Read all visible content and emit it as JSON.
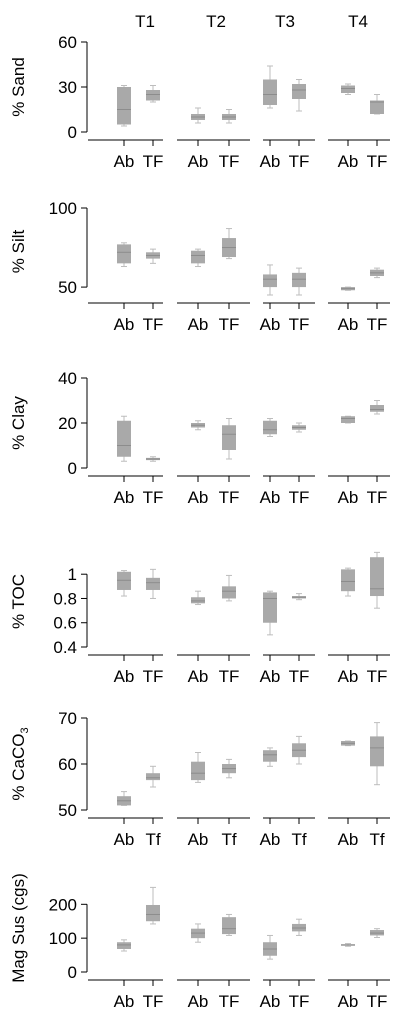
{
  "colors": {
    "box": "#a9a9a9",
    "median": "#8c8c8c",
    "whisker": "#bdbdbd",
    "axis": "#000000"
  },
  "chart_data": {
    "type": "boxplot",
    "columns": [
      "T1",
      "T2",
      "T3",
      "T4"
    ],
    "panels": [
      {
        "ylabel": "% Sand",
        "ylim": [
          0,
          60
        ],
        "yticks": [
          0,
          30,
          60
        ],
        "categories": [
          "Ab",
          "TF"
        ],
        "boxes": [
          {
            "column": "T1",
            "group": "Ab",
            "min": 4,
            "q1": 5,
            "median": 15,
            "q3": 30,
            "max": 31
          },
          {
            "column": "T1",
            "group": "TF",
            "min": 20,
            "q1": 21,
            "median": 25,
            "q3": 28,
            "max": 31
          },
          {
            "column": "T2",
            "group": "Ab",
            "min": 6,
            "q1": 8,
            "median": 10,
            "q3": 12,
            "max": 16
          },
          {
            "column": "T2",
            "group": "TF",
            "min": 6,
            "q1": 8,
            "median": 10,
            "q3": 12,
            "max": 15
          },
          {
            "column": "T3",
            "group": "Ab",
            "min": 16,
            "q1": 18,
            "median": 25,
            "q3": 35,
            "max": 44
          },
          {
            "column": "T3",
            "group": "TF",
            "min": 14,
            "q1": 22,
            "median": 28,
            "q3": 32,
            "max": 35
          },
          {
            "column": "T4",
            "group": "Ab",
            "min": 25,
            "q1": 26,
            "median": 29,
            "q3": 31,
            "max": 32
          },
          {
            "column": "T4",
            "group": "TF",
            "min": 12,
            "q1": 12,
            "median": 20,
            "q3": 21,
            "max": 25
          }
        ]
      },
      {
        "ylabel": "% Silt",
        "ylim": [
          45,
          100
        ],
        "yticks": [
          50,
          100
        ],
        "categories": [
          "Ab",
          "TF"
        ],
        "boxes": [
          {
            "column": "T1",
            "group": "Ab",
            "min": 63,
            "q1": 65,
            "median": 72,
            "q3": 77,
            "max": 78
          },
          {
            "column": "T1",
            "group": "TF",
            "min": 65,
            "q1": 68,
            "median": 70,
            "q3": 72,
            "max": 74
          },
          {
            "column": "T2",
            "group": "Ab",
            "min": 63,
            "q1": 65,
            "median": 70,
            "q3": 73,
            "max": 74
          },
          {
            "column": "T2",
            "group": "TF",
            "min": 68,
            "q1": 69,
            "median": 75,
            "q3": 81,
            "max": 87
          },
          {
            "column": "T3",
            "group": "Ab",
            "min": 45,
            "q1": 50,
            "median": 55,
            "q3": 58,
            "max": 64
          },
          {
            "column": "T3",
            "group": "TF",
            "min": 45,
            "q1": 50,
            "median": 55,
            "q3": 59,
            "max": 62
          },
          {
            "column": "T4",
            "group": "Ab",
            "min": 48,
            "q1": 48,
            "median": 49,
            "q3": 50,
            "max": 50
          },
          {
            "column": "T4",
            "group": "TF",
            "min": 56,
            "q1": 57,
            "median": 59,
            "q3": 61,
            "max": 62
          }
        ]
      },
      {
        "ylabel": "% Clay",
        "ylim": [
          0,
          40
        ],
        "yticks": [
          0,
          20,
          40
        ],
        "categories": [
          "Ab",
          "TF"
        ],
        "boxes": [
          {
            "column": "T1",
            "group": "Ab",
            "min": 3,
            "q1": 5,
            "median": 10,
            "q3": 21,
            "max": 23
          },
          {
            "column": "T1",
            "group": "TF",
            "min": 3,
            "q1": 3.5,
            "median": 4,
            "q3": 4.5,
            "max": 5
          },
          {
            "column": "T2",
            "group": "Ab",
            "min": 17,
            "q1": 18,
            "median": 19,
            "q3": 20,
            "max": 21
          },
          {
            "column": "T2",
            "group": "TF",
            "min": 4,
            "q1": 8,
            "median": 15,
            "q3": 19,
            "max": 22
          },
          {
            "column": "T3",
            "group": "Ab",
            "min": 14,
            "q1": 15,
            "median": 17,
            "q3": 21,
            "max": 22
          },
          {
            "column": "T3",
            "group": "TF",
            "min": 16,
            "q1": 17,
            "median": 18,
            "q3": 19,
            "max": 20
          },
          {
            "column": "T4",
            "group": "Ab",
            "min": 20,
            "q1": 20,
            "median": 22,
            "q3": 23,
            "max": 23
          },
          {
            "column": "T4",
            "group": "TF",
            "min": 24,
            "q1": 25,
            "median": 26,
            "q3": 28,
            "max": 30
          }
        ]
      },
      {
        "ylabel": "% TOC",
        "ylim": [
          0.4,
          1.15
        ],
        "yticks": [
          0.4,
          0.6,
          0.8,
          1
        ],
        "categories": [
          "Ab",
          "TF"
        ],
        "boxes": [
          {
            "column": "T1",
            "group": "Ab",
            "min": 0.82,
            "q1": 0.87,
            "median": 0.95,
            "q3": 1.02,
            "max": 1.03
          },
          {
            "column": "T1",
            "group": "TF",
            "min": 0.8,
            "q1": 0.87,
            "median": 0.93,
            "q3": 0.97,
            "max": 1.04
          },
          {
            "column": "T2",
            "group": "Ab",
            "min": 0.75,
            "q1": 0.76,
            "median": 0.78,
            "q3": 0.81,
            "max": 0.86
          },
          {
            "column": "T2",
            "group": "TF",
            "min": 0.78,
            "q1": 0.8,
            "median": 0.86,
            "q3": 0.9,
            "max": 0.99
          },
          {
            "column": "T3",
            "group": "Ab",
            "min": 0.5,
            "q1": 0.6,
            "median": 0.8,
            "q3": 0.85,
            "max": 0.86
          },
          {
            "column": "T3",
            "group": "TF",
            "min": 0.79,
            "q1": 0.8,
            "median": 0.81,
            "q3": 0.82,
            "max": 0.84
          },
          {
            "column": "T4",
            "group": "Ab",
            "min": 0.82,
            "q1": 0.86,
            "median": 0.94,
            "q3": 1.04,
            "max": 1.05
          },
          {
            "column": "T4",
            "group": "TF",
            "min": 0.72,
            "q1": 0.82,
            "median": 0.88,
            "q3": 1.14,
            "max": 1.18
          }
        ]
      },
      {
        "ylabel": "% CaCO",
        "ylabel_sub": "3",
        "ylim": [
          50,
          70
        ],
        "yticks": [
          50,
          60,
          70
        ],
        "categories": [
          "Ab",
          "Tf"
        ],
        "boxes": [
          {
            "column": "T1",
            "group": "Ab",
            "min": 51,
            "q1": 51,
            "median": 52,
            "q3": 53,
            "max": 54
          },
          {
            "column": "T1",
            "group": "Tf",
            "min": 55,
            "q1": 56.5,
            "median": 57,
            "q3": 58,
            "max": 59.5
          },
          {
            "column": "T2",
            "group": "Ab",
            "min": 56,
            "q1": 56.5,
            "median": 58,
            "q3": 60.5,
            "max": 62.5
          },
          {
            "column": "T2",
            "group": "Tf",
            "min": 57,
            "q1": 58,
            "median": 59,
            "q3": 60,
            "max": 61
          },
          {
            "column": "T3",
            "group": "Ab",
            "min": 59.5,
            "q1": 60.5,
            "median": 62,
            "q3": 63,
            "max": 63.5
          },
          {
            "column": "T3",
            "group": "Tf",
            "min": 60,
            "q1": 61.5,
            "median": 63,
            "q3": 64.5,
            "max": 66
          },
          {
            "column": "T4",
            "group": "Ab",
            "min": 64,
            "q1": 64,
            "median": 64.5,
            "q3": 65,
            "max": 65
          },
          {
            "column": "T4",
            "group": "Tf",
            "min": 55.5,
            "q1": 59.5,
            "median": 63.5,
            "q3": 66,
            "max": 69
          }
        ]
      },
      {
        "ylabel": "Mag Sus (cgs)",
        "ylim": [
          0,
          260
        ],
        "yticks": [
          0,
          100,
          200
        ],
        "categories": [
          "Ab",
          "TF"
        ],
        "boxes": [
          {
            "column": "T1",
            "group": "Ab",
            "min": 62,
            "q1": 68,
            "median": 80,
            "q3": 88,
            "max": 95
          },
          {
            "column": "T1",
            "group": "TF",
            "min": 142,
            "q1": 150,
            "median": 170,
            "q3": 198,
            "max": 250
          },
          {
            "column": "T2",
            "group": "Ab",
            "min": 88,
            "q1": 100,
            "median": 115,
            "q3": 128,
            "max": 142
          },
          {
            "column": "T2",
            "group": "TF",
            "min": 108,
            "q1": 112,
            "median": 128,
            "q3": 162,
            "max": 170
          },
          {
            "column": "T3",
            "group": "Ab",
            "min": 38,
            "q1": 48,
            "median": 68,
            "q3": 88,
            "max": 108
          },
          {
            "column": "T3",
            "group": "TF",
            "min": 108,
            "q1": 120,
            "median": 130,
            "q3": 142,
            "max": 156
          },
          {
            "column": "T4",
            "group": "Ab",
            "min": 76,
            "q1": 78,
            "median": 80,
            "q3": 82,
            "max": 84
          },
          {
            "column": "T4",
            "group": "TF",
            "min": 102,
            "q1": 108,
            "median": 115,
            "q3": 124,
            "max": 128
          }
        ]
      }
    ]
  }
}
